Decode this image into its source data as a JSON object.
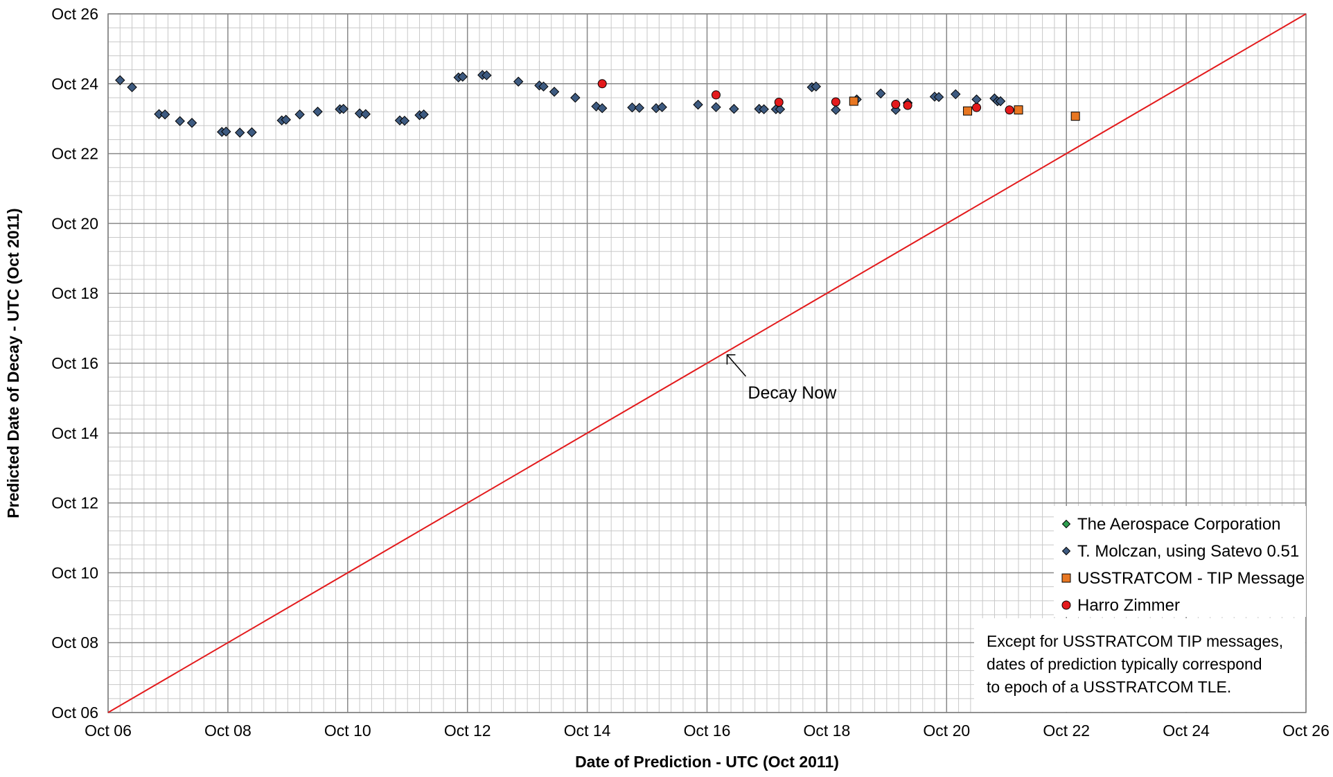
{
  "chart_data": {
    "type": "scatter",
    "title": "",
    "xlabel": "Date of Prediction - UTC (Oct 2011)",
    "ylabel": "Predicted Date of Decay - UTC (Oct 2011)",
    "xlim": [
      6,
      26
    ],
    "ylim": [
      6,
      26
    ],
    "x_tick_labels": [
      "Oct 06",
      "Oct 08",
      "Oct 10",
      "Oct 12",
      "Oct 14",
      "Oct 16",
      "Oct 18",
      "Oct 20",
      "Oct 22",
      "Oct 24",
      "Oct 26"
    ],
    "y_tick_labels": [
      "Oct 06",
      "Oct 08",
      "Oct 10",
      "Oct 12",
      "Oct 14",
      "Oct 16",
      "Oct 18",
      "Oct 20",
      "Oct 22",
      "Oct 24",
      "Oct 26"
    ],
    "grid": true,
    "legend_position": "bottom-right",
    "series": [
      {
        "name": "The Aerospace Corporation",
        "marker": "diamond",
        "color": "#2e9e4f",
        "points": []
      },
      {
        "name": "T. Molczan, using Satevo 0.51",
        "marker": "diamond",
        "color": "#3d5a80",
        "points": [
          [
            6.2,
            24.1
          ],
          [
            6.4,
            23.9
          ],
          [
            6.85,
            23.13
          ],
          [
            6.95,
            23.12
          ],
          [
            7.2,
            22.93
          ],
          [
            7.4,
            22.88
          ],
          [
            7.9,
            22.62
          ],
          [
            7.97,
            22.63
          ],
          [
            8.2,
            22.6
          ],
          [
            8.4,
            22.61
          ],
          [
            8.9,
            22.95
          ],
          [
            8.97,
            22.97
          ],
          [
            9.2,
            23.12
          ],
          [
            9.5,
            23.2
          ],
          [
            9.87,
            23.27
          ],
          [
            9.93,
            23.28
          ],
          [
            10.2,
            23.15
          ],
          [
            10.3,
            23.13
          ],
          [
            10.87,
            22.95
          ],
          [
            10.95,
            22.94
          ],
          [
            11.2,
            23.1
          ],
          [
            11.27,
            23.12
          ],
          [
            11.85,
            24.18
          ],
          [
            11.92,
            24.2
          ],
          [
            12.25,
            24.25
          ],
          [
            12.32,
            24.24
          ],
          [
            12.85,
            24.06
          ],
          [
            13.2,
            23.95
          ],
          [
            13.27,
            23.92
          ],
          [
            13.45,
            23.77
          ],
          [
            13.8,
            23.6
          ],
          [
            14.15,
            23.35
          ],
          [
            14.25,
            23.3
          ],
          [
            14.75,
            23.32
          ],
          [
            14.87,
            23.31
          ],
          [
            15.15,
            23.3
          ],
          [
            15.25,
            23.33
          ],
          [
            15.85,
            23.4
          ],
          [
            16.15,
            23.33
          ],
          [
            16.45,
            23.28
          ],
          [
            16.87,
            23.28
          ],
          [
            16.95,
            23.27
          ],
          [
            17.15,
            23.27
          ],
          [
            17.22,
            23.27
          ],
          [
            17.75,
            23.9
          ],
          [
            17.82,
            23.92
          ],
          [
            18.15,
            23.25
          ],
          [
            18.5,
            23.55
          ],
          [
            18.9,
            23.72
          ],
          [
            19.15,
            23.25
          ],
          [
            19.35,
            23.45
          ],
          [
            19.8,
            23.63
          ],
          [
            19.87,
            23.62
          ],
          [
            20.15,
            23.7
          ],
          [
            20.5,
            23.55
          ],
          [
            20.8,
            23.58
          ],
          [
            20.85,
            23.5
          ],
          [
            20.9,
            23.5
          ]
        ]
      },
      {
        "name": "USSTRATCOM - TIP Message",
        "marker": "square",
        "color": "#e87722",
        "points": [
          [
            18.45,
            23.5
          ],
          [
            20.35,
            23.22
          ],
          [
            21.2,
            23.25
          ],
          [
            22.15,
            23.07
          ]
        ]
      },
      {
        "name": "Harro Zimmer",
        "marker": "circle",
        "color": "#e31a1c",
        "points": [
          [
            14.25,
            24.0
          ],
          [
            16.15,
            23.68
          ],
          [
            17.2,
            23.47
          ],
          [
            18.15,
            23.48
          ],
          [
            19.15,
            23.41
          ],
          [
            19.35,
            23.38
          ],
          [
            20.5,
            23.32
          ],
          [
            21.05,
            23.25
          ]
        ]
      }
    ],
    "reference_line": {
      "points": [
        [
          6,
          6
        ],
        [
          26,
          26
        ]
      ],
      "color": "#e31a1c"
    },
    "annotation": {
      "text": "Decay Now",
      "target": [
        16.3,
        16.3
      ]
    },
    "note": [
      "Except for USSTRATCOM TIP messages,",
      "dates of prediction typically correspond",
      "to epoch of a USSTRATCOM TLE."
    ]
  }
}
